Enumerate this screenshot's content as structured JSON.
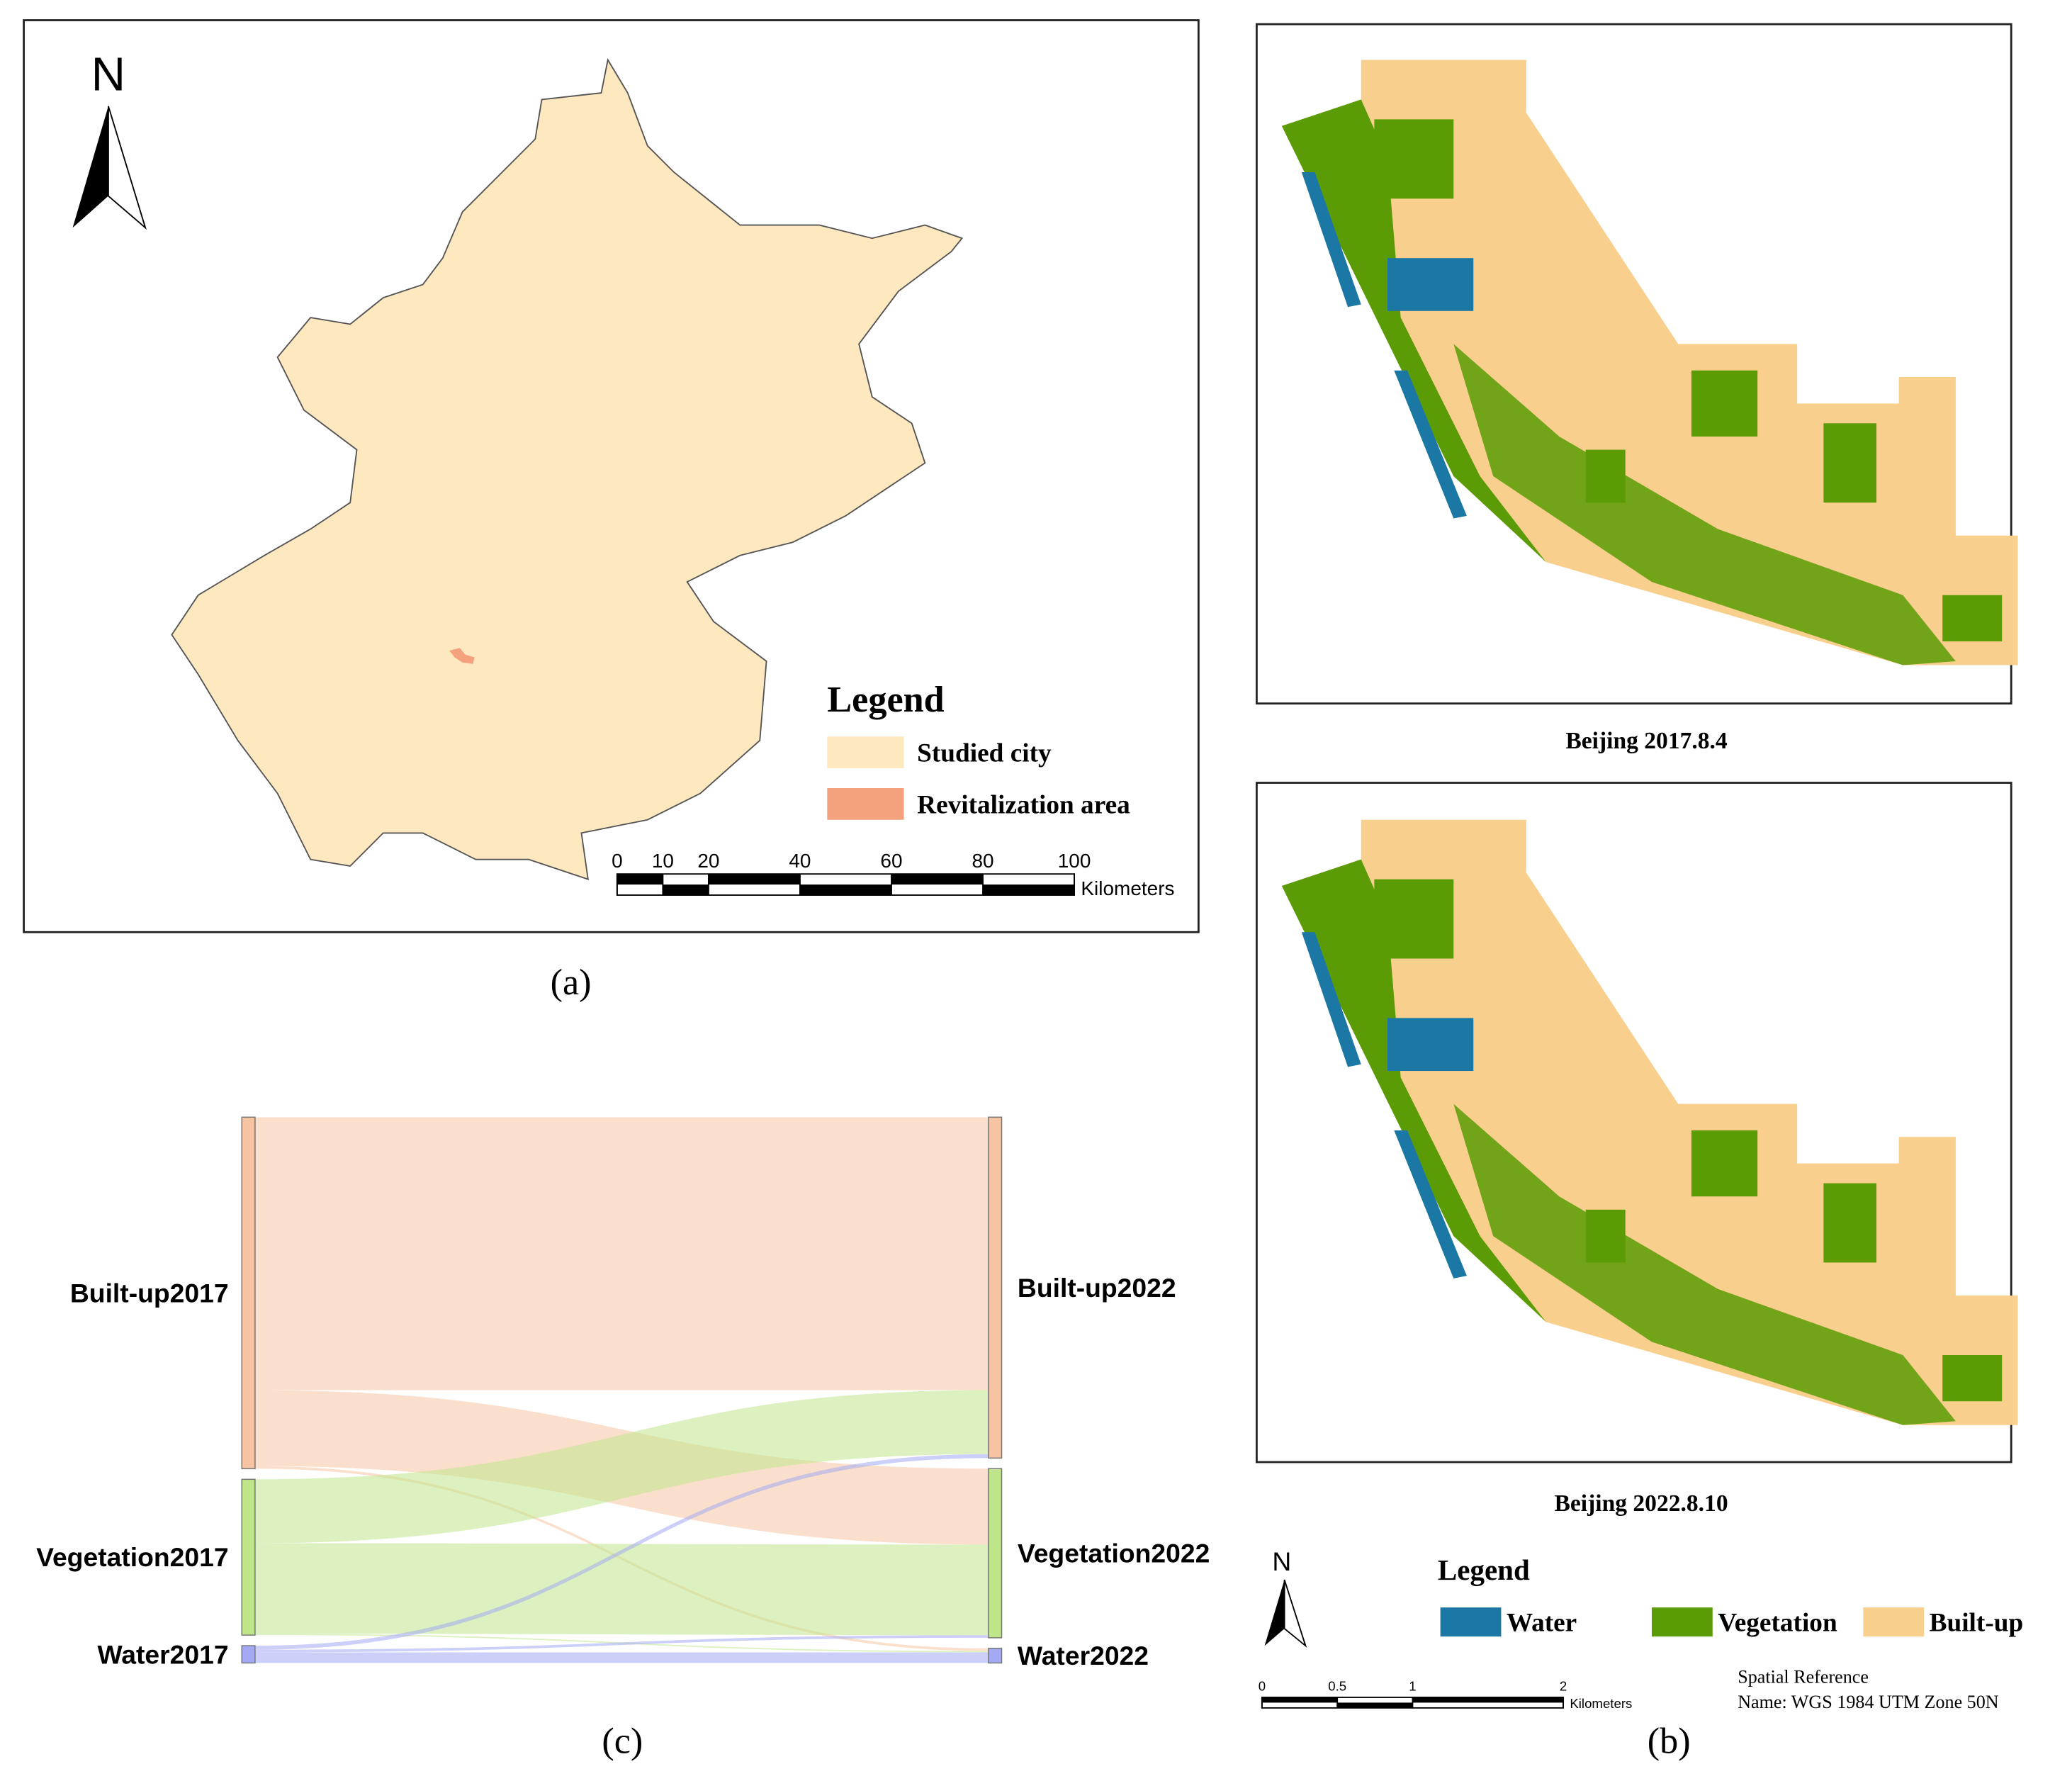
{
  "panel_a": {
    "caption": "(a)",
    "north": "N",
    "legend": {
      "title": "Legend",
      "items": [
        {
          "label": "Studied city",
          "color": "#fde8bf"
        },
        {
          "label": "Revitalization area",
          "color": "#f4a27e"
        }
      ]
    },
    "scale": {
      "ticks": [
        0,
        10,
        20,
        40,
        60,
        80,
        100
      ],
      "unit": "Kilometers"
    }
  },
  "panel_b": {
    "caption": "(b)",
    "maps": [
      {
        "label": "Beijing 2017.8.4"
      },
      {
        "label": "Beijing 2022.8.10"
      }
    ],
    "north": "N",
    "legend": {
      "title": "Legend",
      "items": [
        {
          "label": "Water",
          "color": "#1b77a3"
        },
        {
          "label": "Vegetation",
          "color": "#5b9c06"
        },
        {
          "label": "Built-up",
          "color": "#f8cf8d"
        }
      ]
    },
    "scale": {
      "ticks": [
        0,
        0.5,
        1,
        2
      ],
      "unit": "Kilometers"
    },
    "spatial_reference": [
      "Spatial Reference",
      "Name: WGS 1984 UTM Zone 50N"
    ]
  },
  "chart_data": {
    "type": "sankey",
    "caption": "(c)",
    "nodes": [
      {
        "name": "Built-up2017",
        "color": "#f6c4a2"
      },
      {
        "name": "Vegetation2017",
        "color": "#bfe58a"
      },
      {
        "name": "Water2017",
        "color": "#a3a9f2"
      },
      {
        "name": "Built-up2022",
        "color": "#f6c4a2"
      },
      {
        "name": "Vegetation2022",
        "color": "#bfe58a"
      },
      {
        "name": "Water2022",
        "color": "#a3a9f2"
      }
    ],
    "links": [
      {
        "source": 0,
        "target": 3,
        "value": 205
      },
      {
        "source": 0,
        "target": 4,
        "value": 57
      },
      {
        "source": 0,
        "target": 5,
        "value": 2
      },
      {
        "source": 1,
        "target": 3,
        "value": 48
      },
      {
        "source": 1,
        "target": 4,
        "value": 68
      },
      {
        "source": 1,
        "target": 5,
        "value": 1
      },
      {
        "source": 2,
        "target": 3,
        "value": 3
      },
      {
        "source": 2,
        "target": 4,
        "value": 2
      },
      {
        "source": 2,
        "target": 5,
        "value": 8
      }
    ]
  }
}
